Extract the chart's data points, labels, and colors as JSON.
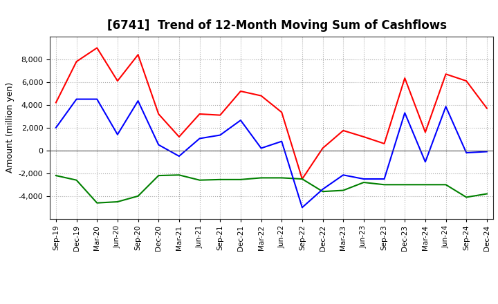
{
  "title": "[6741]  Trend of 12-Month Moving Sum of Cashflows",
  "ylabel": "Amount (million yen)",
  "x_labels": [
    "Sep-19",
    "Dec-19",
    "Mar-20",
    "Jun-20",
    "Sep-20",
    "Dec-20",
    "Mar-21",
    "Jun-21",
    "Sep-21",
    "Dec-21",
    "Mar-22",
    "Jun-22",
    "Sep-22",
    "Dec-22",
    "Mar-23",
    "Jun-23",
    "Sep-23",
    "Dec-23",
    "Mar-24",
    "Jun-24",
    "Sep-24",
    "Dec-24"
  ],
  "operating_cashflow": [
    4200,
    7800,
    9000,
    6100,
    8400,
    3200,
    1200,
    3200,
    3100,
    5200,
    4800,
    3350,
    -2500,
    200,
    1750,
    1200,
    600,
    6350,
    1600,
    6700,
    6100,
    3700
  ],
  "investing_cashflow": [
    -2200,
    -2600,
    -4600,
    -4500,
    -4000,
    -2200,
    -2150,
    -2600,
    -2550,
    -2550,
    -2400,
    -2400,
    -2500,
    -3600,
    -3500,
    -2800,
    -3000,
    -3000,
    -3000,
    -3000,
    -4100,
    -3800
  ],
  "free_cashflow": [
    2000,
    4500,
    4500,
    1400,
    4350,
    500,
    -500,
    1050,
    1350,
    2650,
    200,
    800,
    -5000,
    -3400,
    -2150,
    -2500,
    -2500,
    3300,
    -1000,
    3850,
    -200,
    -100
  ],
  "operating_color": "#ff0000",
  "investing_color": "#008000",
  "free_color": "#0000ff",
  "ylim": [
    -6000,
    10000
  ],
  "yticks": [
    -4000,
    -2000,
    0,
    2000,
    4000,
    6000,
    8000
  ],
  "background_color": "#ffffff",
  "grid_color": "#aaaaaa"
}
